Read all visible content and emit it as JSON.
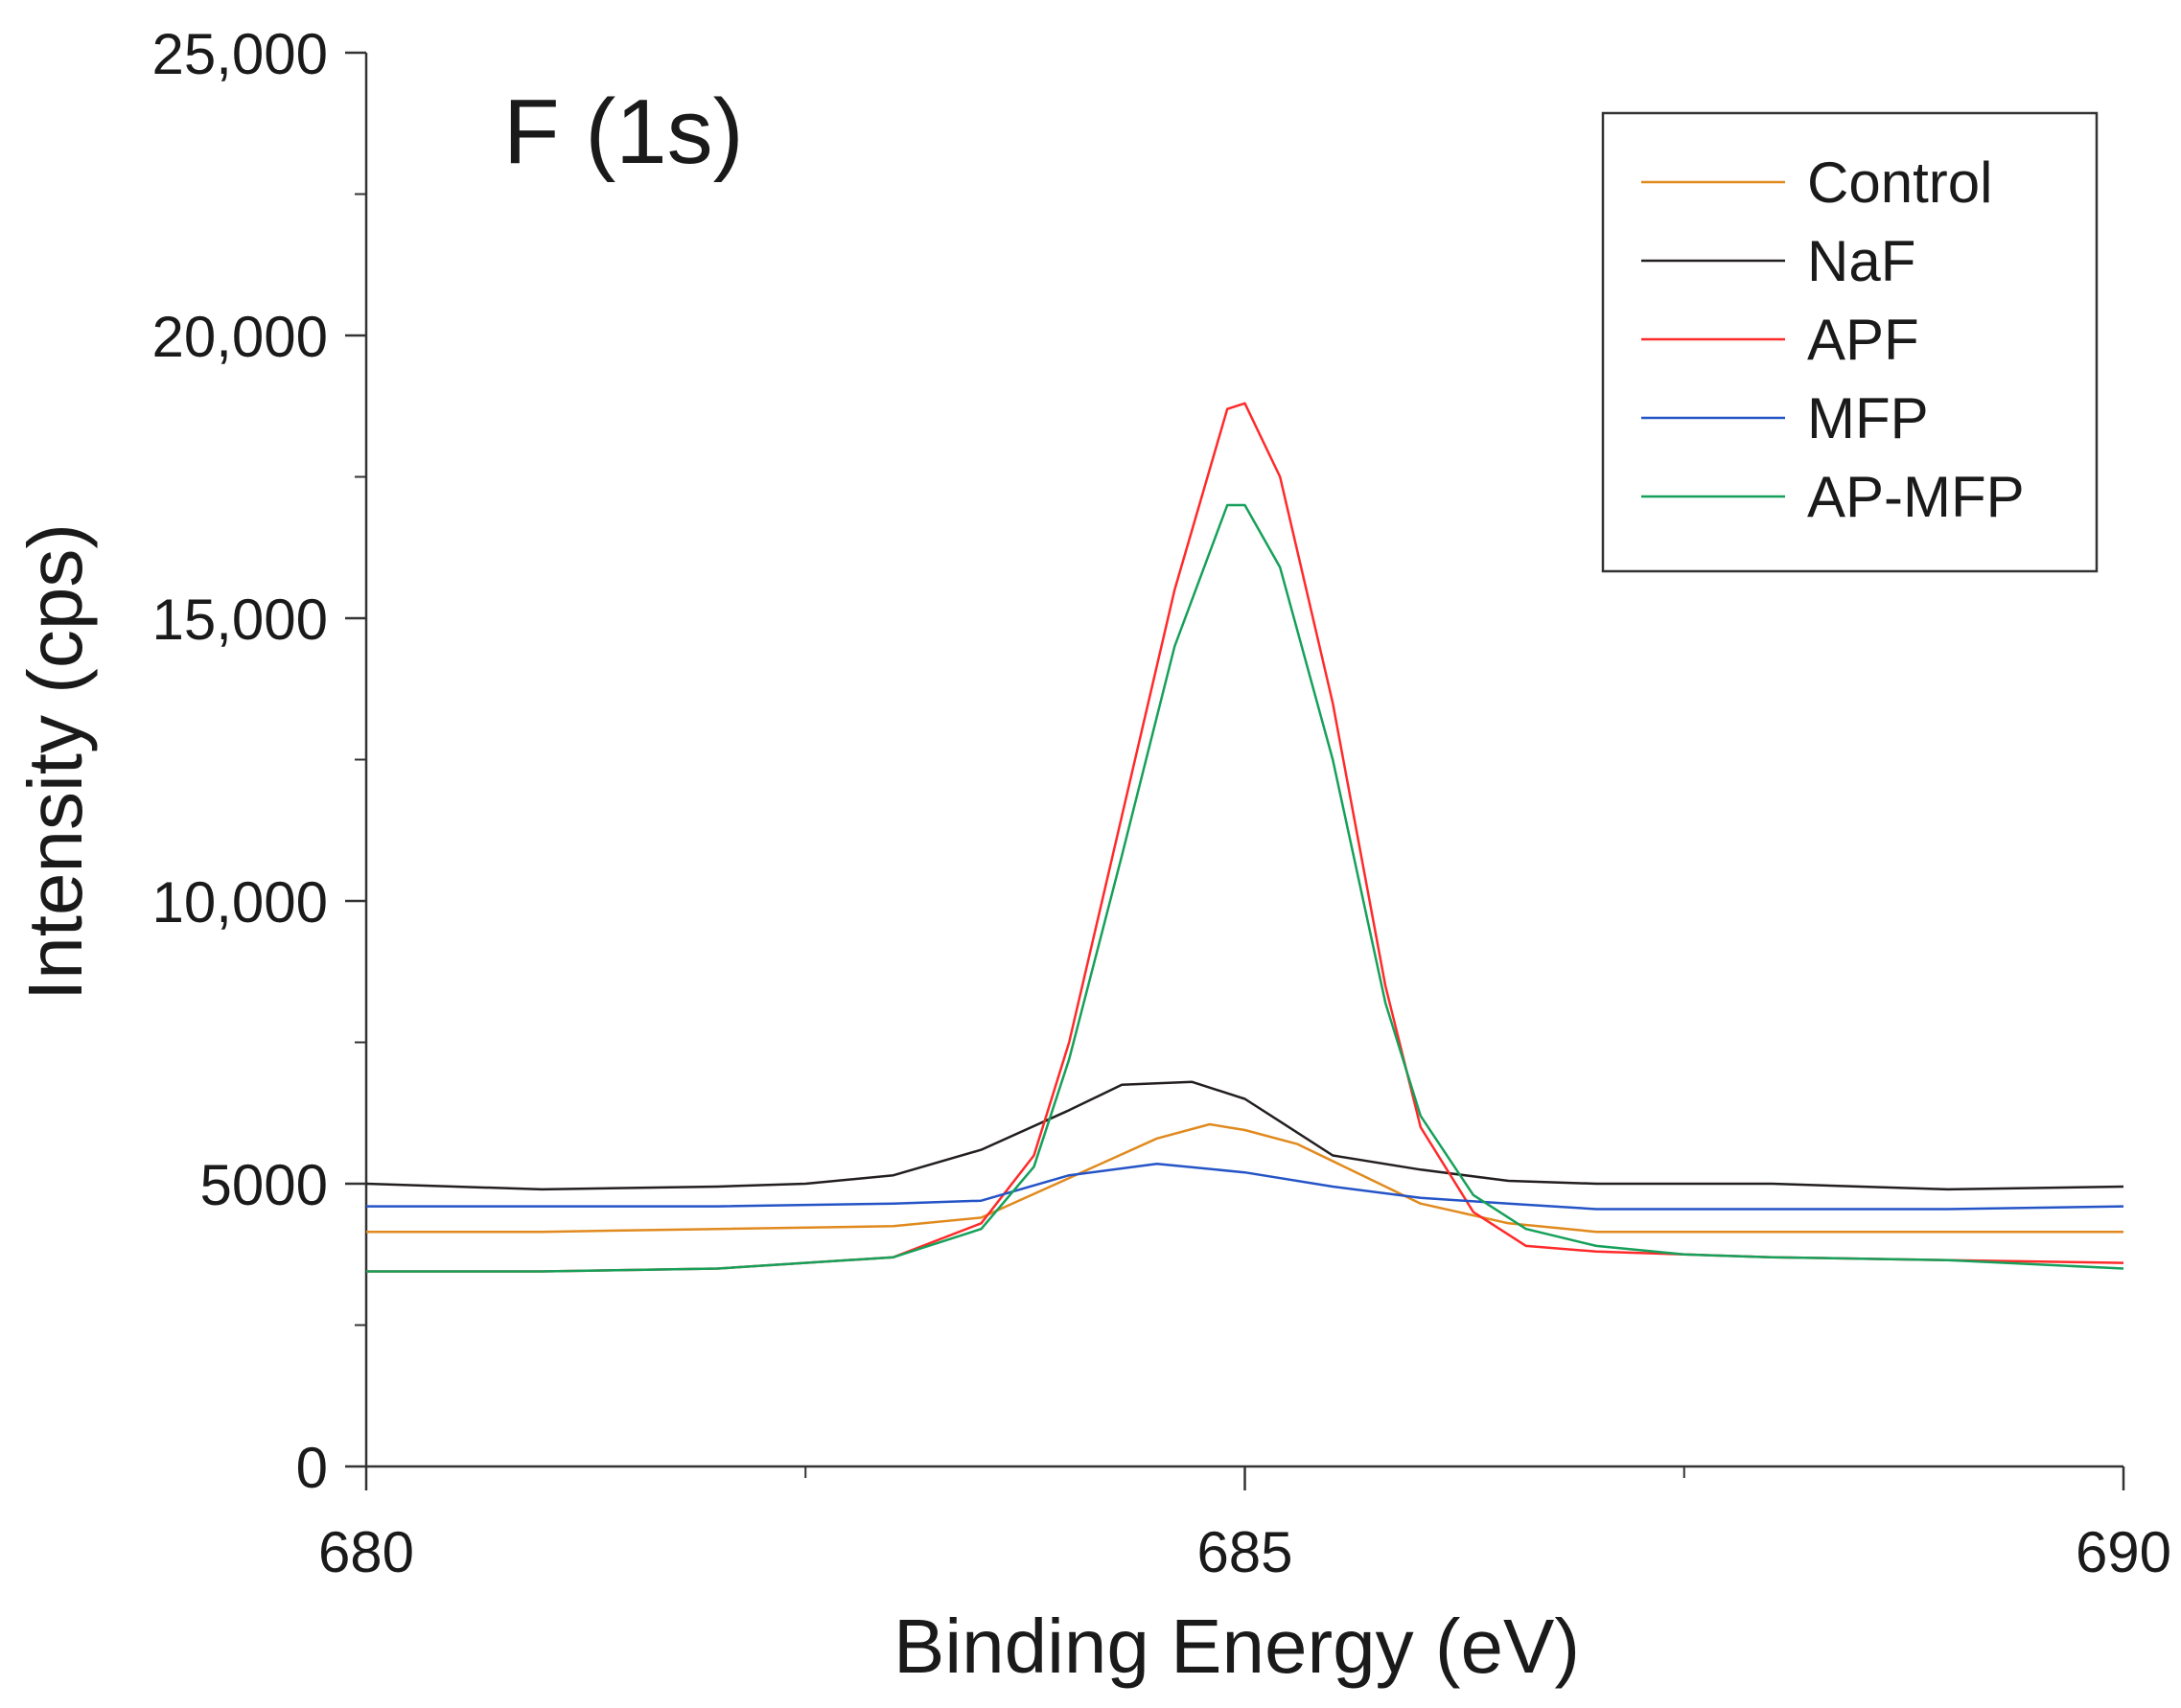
{
  "chart_data": {
    "type": "line",
    "title": "F (1s)",
    "xlabel": "Binding Energy (eV)",
    "ylabel": "Intensity (cps)",
    "xlim": [
      680,
      690
    ],
    "ylim": [
      0,
      25000
    ],
    "x_ticks": [
      680,
      685,
      690
    ],
    "x_minor_ticks": [
      682.5,
      687.5
    ],
    "y_ticks": [
      {
        "value": 0,
        "label": "0"
      },
      {
        "value": 5000,
        "label": "5000"
      },
      {
        "value": 10000,
        "label": "10,000"
      },
      {
        "value": 15000,
        "label": "15,000"
      },
      {
        "value": 20000,
        "label": "20,000"
      },
      {
        "value": 25000,
        "label": "25,000"
      }
    ],
    "y_minor_step": 2500,
    "grid": false,
    "legend_position": "top-right",
    "series": [
      {
        "name": "Control",
        "color": "#e08a1e",
        "x": [
          680,
          681,
          682,
          683,
          683.5,
          684,
          684.5,
          684.8,
          685,
          685.3,
          685.7,
          686,
          686.5,
          687,
          688,
          689,
          690
        ],
        "y": [
          4150,
          4150,
          4200,
          4250,
          4400,
          5100,
          5800,
          6050,
          5950,
          5700,
          5100,
          4650,
          4300,
          4150,
          4150,
          4150,
          4150
        ]
      },
      {
        "name": "NaF",
        "color": "#231f20",
        "x": [
          680,
          681,
          682,
          682.5,
          683,
          683.5,
          684,
          684.3,
          684.7,
          685,
          685.2,
          685.5,
          686,
          686.5,
          687,
          688,
          689,
          690
        ],
        "y": [
          5000,
          4900,
          4950,
          5000,
          5150,
          5600,
          6300,
          6750,
          6800,
          6500,
          6100,
          5500,
          5250,
          5050,
          5000,
          5000,
          4900,
          4950
        ]
      },
      {
        "name": "APF",
        "color": "#ff2a2a",
        "x": [
          680,
          681,
          682,
          683,
          683.5,
          683.8,
          684,
          684.3,
          684.6,
          684.9,
          685,
          685.2,
          685.5,
          685.8,
          686,
          686.3,
          686.6,
          687,
          687.5,
          688,
          689,
          690
        ],
        "y": [
          3450,
          3450,
          3500,
          3700,
          4300,
          5500,
          7500,
          11500,
          15500,
          18700,
          18800,
          17500,
          13500,
          8500,
          6000,
          4500,
          3900,
          3800,
          3750,
          3700,
          3650,
          3600
        ]
      },
      {
        "name": "MFP",
        "color": "#2554c7",
        "x": [
          680,
          681,
          682,
          683,
          683.5,
          684,
          684.5,
          685,
          685.5,
          686,
          686.5,
          687,
          688,
          689,
          690
        ],
        "y": [
          4600,
          4600,
          4600,
          4650,
          4700,
          5150,
          5350,
          5200,
          4950,
          4750,
          4650,
          4550,
          4550,
          4550,
          4600
        ]
      },
      {
        "name": "AP-MFP",
        "color": "#16a05a",
        "x": [
          680,
          681,
          682,
          683,
          683.5,
          683.8,
          684,
          684.3,
          684.6,
          684.9,
          685,
          685.2,
          685.5,
          685.8,
          686,
          686.3,
          686.6,
          687,
          687.5,
          688,
          689,
          690
        ],
        "y": [
          3450,
          3450,
          3500,
          3700,
          4200,
          5300,
          7200,
          10800,
          14500,
          17000,
          17000,
          15900,
          12500,
          8200,
          6200,
          4800,
          4200,
          3900,
          3750,
          3700,
          3650,
          3500
        ]
      }
    ]
  }
}
